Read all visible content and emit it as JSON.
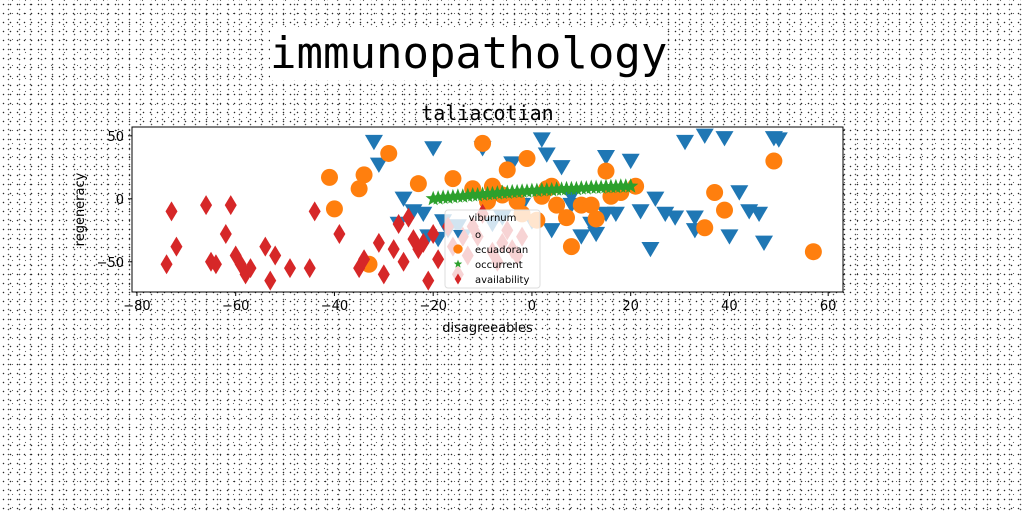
{
  "page": {
    "title": "immunopathology"
  },
  "colors": {
    "blue": "#1f77b4",
    "orange": "#ff7f0e",
    "green": "#2ca02c",
    "red": "#d62728"
  },
  "chart_data": {
    "type": "scatter",
    "title": "taliacotian",
    "xlabel": "disagreeables",
    "ylabel": "regeneracy",
    "xlim": [
      -81,
      63
    ],
    "ylim": [
      -74,
      57
    ],
    "xticks": [
      -80,
      -60,
      -40,
      -20,
      0,
      20,
      40,
      60
    ],
    "xtick_labels": [
      "−80",
      "−60",
      "−40",
      "−20",
      "0",
      "20",
      "40",
      "60"
    ],
    "yticks": [
      -50,
      0,
      50
    ],
    "ytick_labels": [
      "−50",
      "0",
      "50"
    ],
    "grid": false,
    "legend": {
      "title": "viburnum",
      "placement": "center"
    },
    "series": [
      {
        "name": "o",
        "marker": "triangle-down",
        "color": "#1f77b4",
        "x": [
          -32,
          -31,
          -27,
          -26,
          -24,
          -22,
          -21,
          -20,
          -19,
          -18,
          -17,
          -15,
          -14,
          -10,
          -8,
          -6,
          -4,
          -2,
          0,
          2,
          3,
          4,
          6,
          8,
          8,
          10,
          12,
          13,
          15,
          17,
          20,
          22,
          24,
          25,
          27,
          29,
          31,
          33,
          35,
          39,
          40,
          42,
          44,
          46,
          47,
          49,
          33,
          15,
          50
        ],
        "y": [
          45,
          27,
          -20,
          0,
          -10,
          -12,
          -30,
          40,
          -32,
          -18,
          -25,
          -22,
          -30,
          40,
          -20,
          -15,
          28,
          -5,
          -18,
          47,
          35,
          -25,
          25,
          2,
          -5,
          -30,
          -20,
          -28,
          33,
          -12,
          30,
          -10,
          -40,
          0,
          -12,
          -15,
          45,
          -15,
          50,
          48,
          -30,
          5,
          -10,
          -12,
          -35,
          48,
          -25,
          -12,
          47
        ]
      },
      {
        "name": "ecuadoran",
        "marker": "circle",
        "color": "#ff7f0e",
        "x": [
          -41,
          -40,
          -35,
          -34,
          -33,
          -29,
          -23,
          -16,
          -12,
          -10,
          -8,
          -7,
          -5,
          -3,
          -1,
          1,
          3,
          4,
          5,
          7,
          8,
          10,
          12,
          13,
          15,
          16,
          18,
          21,
          35,
          37,
          39,
          49,
          57,
          -9,
          -6,
          2,
          -2
        ],
        "y": [
          17,
          -8,
          8,
          19,
          -52,
          36,
          12,
          16,
          8,
          44,
          10,
          5,
          23,
          -2,
          32,
          -17,
          8,
          10,
          -5,
          -15,
          -38,
          -5,
          -5,
          -16,
          22,
          2,
          5,
          10,
          -23,
          5,
          -9,
          30,
          -42,
          -2,
          3,
          2,
          -12
        ]
      },
      {
        "name": "occurrent",
        "marker": "star",
        "color": "#2ca02c",
        "x": [
          -20,
          -19,
          -18,
          -17,
          -16,
          -15,
          -14,
          -13,
          -12,
          -11,
          -10,
          -9,
          -8,
          -7,
          -6,
          -5,
          -4,
          -3,
          -2,
          -1,
          0,
          1,
          2,
          3,
          4,
          5,
          6,
          7,
          8,
          9,
          10,
          11,
          12,
          13,
          14,
          15,
          16,
          17,
          18,
          19,
          20
        ],
        "y": [
          0,
          0.5,
          1,
          1,
          1.5,
          2,
          2,
          2.5,
          3,
          3,
          3.5,
          4,
          4,
          4.5,
          5,
          5,
          5.5,
          5.5,
          6,
          6,
          6.5,
          6.5,
          7,
          7,
          7,
          7.5,
          7.5,
          8,
          8,
          8,
          8.5,
          8.5,
          9,
          9,
          9,
          9.5,
          9.5,
          9.5,
          10,
          10,
          10
        ]
      },
      {
        "name": "availability",
        "marker": "diamond",
        "color": "#d62728",
        "x": [
          -74,
          -73,
          -72,
          -66,
          -65,
          -64,
          -62,
          -61,
          -60,
          -59,
          -58,
          -57,
          -54,
          -53,
          -52,
          -49,
          -45,
          -44,
          -39,
          -35,
          -34,
          -31,
          -30,
          -28,
          -26,
          -24,
          -22,
          -20,
          -19,
          -17,
          -16,
          -15,
          -14,
          -13,
          -12,
          -11,
          -10,
          -8,
          -7,
          -6,
          -5,
          -4,
          -3,
          -2,
          -21,
          -23,
          -25,
          -27
        ],
        "y": [
          -52,
          -10,
          -38,
          -5,
          -50,
          -52,
          -28,
          -5,
          -45,
          -52,
          -60,
          -55,
          -38,
          -65,
          -45,
          -55,
          -55,
          -10,
          -28,
          -55,
          -48,
          -35,
          -60,
          -40,
          -50,
          -32,
          -35,
          -28,
          -48,
          -22,
          -38,
          -60,
          -30,
          -45,
          -22,
          -30,
          -12,
          -42,
          -50,
          -35,
          -25,
          -40,
          -45,
          -30,
          -65,
          -40,
          -15,
          -20
        ]
      }
    ]
  }
}
